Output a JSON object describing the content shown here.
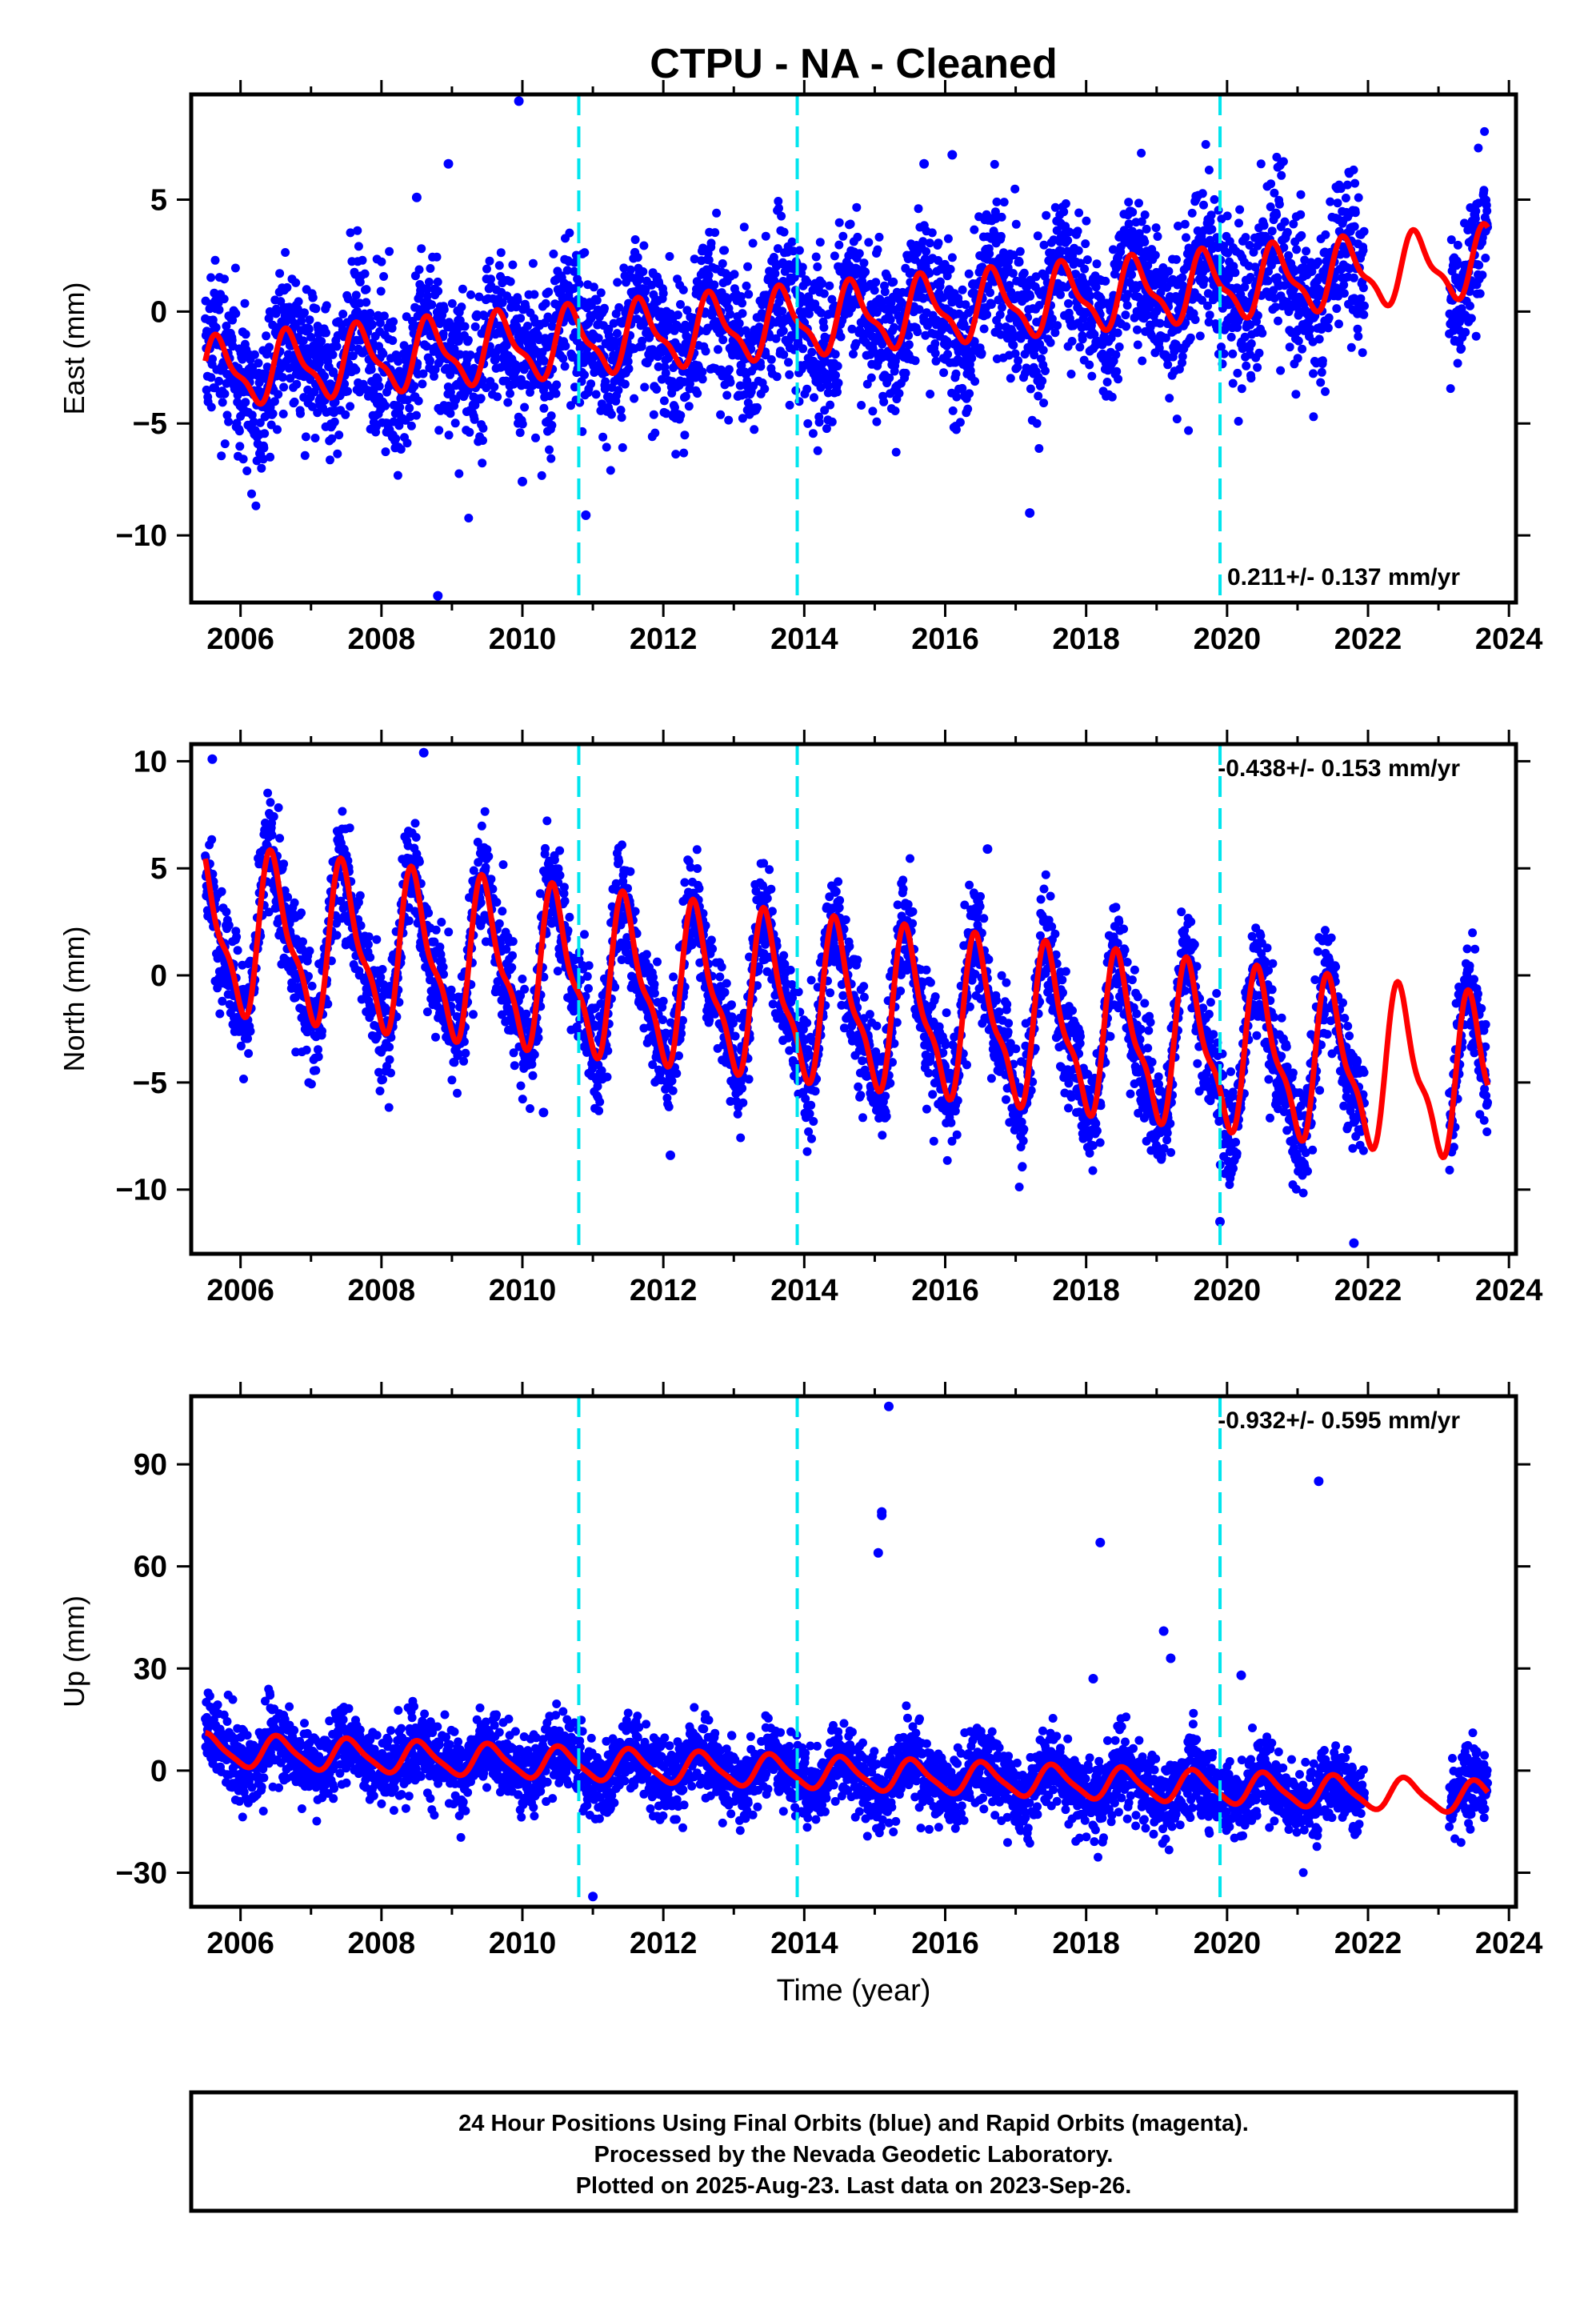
{
  "title": "CTPU  - NA - Cleaned",
  "xlabel": "Time (year)",
  "colors": {
    "data": "#0000ff",
    "fit": "#ff0000",
    "event": "#00e5ee"
  },
  "chart_data": [
    {
      "type": "scatter",
      "name": "east",
      "ylabel": "East (mm)",
      "xlim": [
        2005.3,
        2024.1
      ],
      "ylim": [
        -13,
        9.7
      ],
      "xticks": [
        "2006",
        "2008",
        "2010",
        "2012",
        "2014",
        "2016",
        "2018",
        "2020",
        "2022",
        "2024"
      ],
      "yticks": [
        "5",
        "0",
        "−5",
        "−10"
      ],
      "ytick_values": [
        5,
        0,
        -5,
        -10
      ],
      "rate_label": "0.211+/- 0.137 mm/yr",
      "rate_position": "bottom-right",
      "events": [
        2010.8,
        2013.9,
        2019.9
      ],
      "data_range": [
        2005.5,
        2023.7
      ],
      "gap": [
        2021.95,
        2023.15
      ],
      "fit": {
        "start": -2.8,
        "end": 2.2,
        "annual_amp": 1.4,
        "semi_amp": 0.5,
        "phase": 0.7
      },
      "scatter_sd": 1.7,
      "outliers": [
        [
          2009.95,
          9.4
        ],
        [
          2008.8,
          -12.7
        ],
        [
          2010.9,
          -9.1
        ],
        [
          2017.2,
          -9.0
        ],
        [
          2010.0,
          -7.6
        ],
        [
          2016.1,
          7.0
        ],
        [
          2015.7,
          6.6
        ],
        [
          2008.95,
          6.6
        ],
        [
          2008.5,
          5.1
        ]
      ]
    },
    {
      "type": "scatter",
      "name": "north",
      "ylabel": "North (mm)",
      "xlim": [
        2005.3,
        2024.1
      ],
      "ylim": [
        -13,
        10.8
      ],
      "xticks": [
        "2006",
        "2008",
        "2010",
        "2012",
        "2014",
        "2016",
        "2018",
        "2020",
        "2022",
        "2024"
      ],
      "yticks": [
        "10",
        "5",
        "0",
        "−5",
        "−10"
      ],
      "ytick_values": [
        10,
        5,
        0,
        -5,
        -10
      ],
      "rate_label": "-0.438+/- 0.153 mm/yr",
      "rate_position": "top-right",
      "events": [
        2010.8,
        2013.9,
        2019.9
      ],
      "data_range": [
        2005.5,
        2023.7
      ],
      "gap": [
        2021.95,
        2023.15
      ],
      "fit": {
        "start": 2.0,
        "end": -5.0,
        "annual_amp": 3.4,
        "semi_amp": 1.2,
        "phase": 0.48
      },
      "scatter_sd": 1.3,
      "outliers": [
        [
          2008.6,
          10.4
        ],
        [
          2005.6,
          10.1
        ],
        [
          2019.9,
          -11.5
        ],
        [
          2021.8,
          -12.5
        ],
        [
          2012.1,
          -8.4
        ],
        [
          2010.3,
          -6.4
        ],
        [
          2015.1,
          -6.6
        ],
        [
          2016.6,
          5.9
        ]
      ]
    },
    {
      "type": "scatter",
      "name": "up",
      "ylabel": "Up (mm)",
      "xlim": [
        2005.3,
        2024.1
      ],
      "ylim": [
        -40,
        110
      ],
      "xticks": [
        "2006",
        "2008",
        "2010",
        "2012",
        "2014",
        "2016",
        "2018",
        "2020",
        "2022",
        "2024"
      ],
      "yticks": [
        "90",
        "60",
        "30",
        "0",
        "−30"
      ],
      "ytick_values": [
        90,
        60,
        30,
        0,
        -30
      ],
      "rate_label": "-0.932+/- 0.595 mm/yr",
      "rate_position": "top-right",
      "events": [
        2010.8,
        2013.9,
        2019.9
      ],
      "data_range": [
        2005.5,
        2023.7
      ],
      "gap": [
        2021.95,
        2023.15
      ],
      "fit": {
        "start": 6.0,
        "end": -8.0,
        "annual_amp": 4.5,
        "semi_amp": 1.0,
        "phase": 0.55
      },
      "scatter_sd": 5.5,
      "outliers": [
        [
          2015.2,
          107
        ],
        [
          2015.1,
          76
        ],
        [
          2015.1,
          75
        ],
        [
          2015.05,
          64
        ],
        [
          2018.2,
          67
        ],
        [
          2019.1,
          41
        ],
        [
          2019.2,
          33
        ],
        [
          2021.3,
          85
        ],
        [
          2011.0,
          -37
        ],
        [
          2020.2,
          28
        ],
        [
          2018.1,
          27
        ]
      ]
    }
  ],
  "footer": {
    "line1": "24 Hour Positions Using Final Orbits (blue) and Rapid Orbits (magenta).",
    "line2": "Processed by the Nevada Geodetic Laboratory.",
    "line3": "Plotted on 2025-Aug-23. Last data on 2023-Sep-26."
  }
}
